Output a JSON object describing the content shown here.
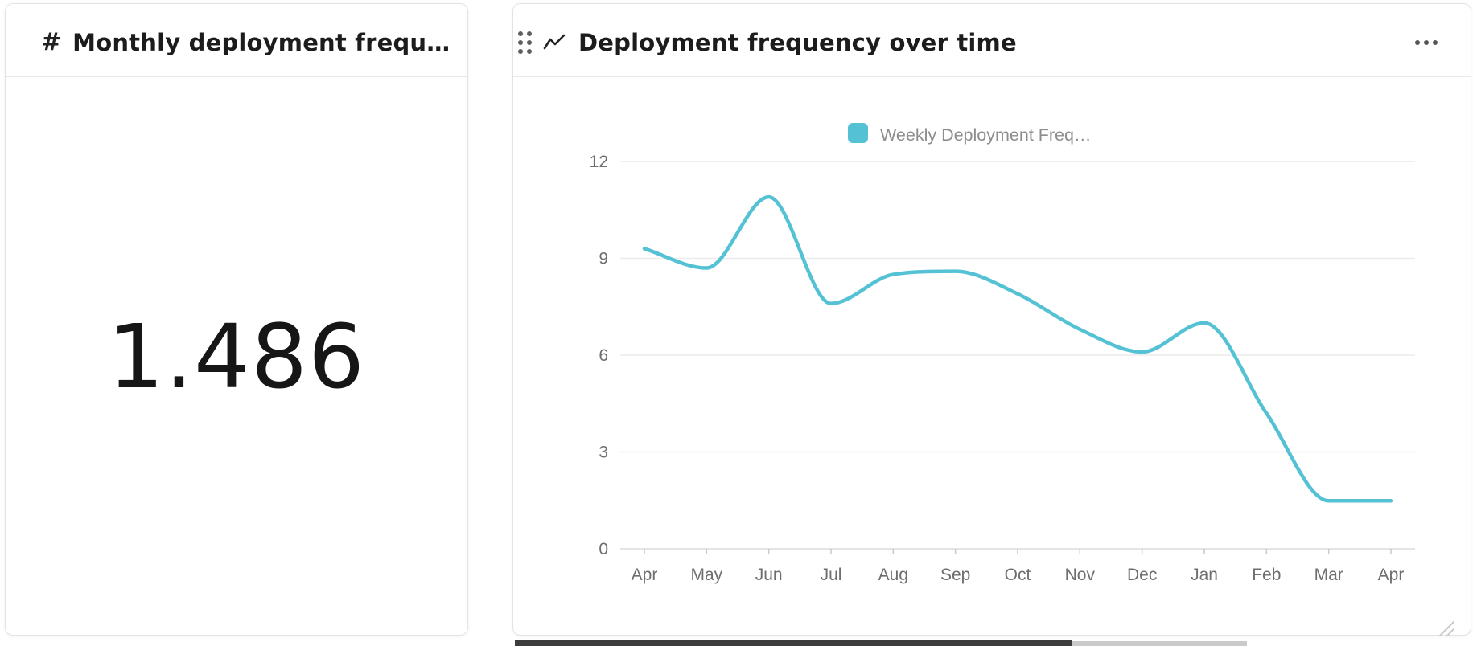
{
  "page": {
    "background": "#ffffff"
  },
  "left_card": {
    "icon": "hash-icon",
    "title": "Monthly deployment frequen…",
    "value": "1.486"
  },
  "right_card": {
    "drag_handle_icon": "drag-dots-icon",
    "type_icon": "line-chart-icon",
    "title": "Deployment frequency over time",
    "menu_icon": "ellipsis-menu-icon"
  },
  "chart_data": {
    "type": "line",
    "title": "",
    "legend": [
      {
        "label": "Weekly Deployment Freq…",
        "color": "#54c2d4"
      }
    ],
    "legend_position": "top",
    "categories": [
      "Apr",
      "May",
      "Jun",
      "Jul",
      "Aug",
      "Sep",
      "Oct",
      "Nov",
      "Dec",
      "Jan",
      "Feb",
      "Mar",
      "Apr"
    ],
    "series": [
      {
        "name": "Weekly Deployment Freq…",
        "color": "#54c2d4",
        "values": [
          9.3,
          8.7,
          10.9,
          7.6,
          8.5,
          8.6,
          7.9,
          6.8,
          6.1,
          7.0,
          4.2,
          1.486,
          1.486
        ]
      }
    ],
    "xlabel": "",
    "ylabel": "",
    "ylim": [
      0,
      12
    ],
    "yticks": [
      12,
      9,
      6,
      3,
      0
    ],
    "grid": true,
    "smoothing": "monotone"
  },
  "colors": {
    "line": "#54c2d4",
    "grid": "#ececec",
    "axis": "#dcdcdc",
    "tick": "#c9c9c9",
    "axis_label": "#6e6e6e",
    "legend_text": "#8d8d8d",
    "resize_grip": "#cbcbcb"
  }
}
